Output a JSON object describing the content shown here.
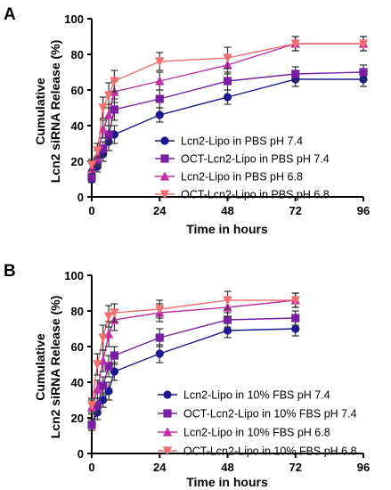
{
  "chart_data": [
    {
      "panel": "A",
      "type": "line",
      "ylabel": [
        "Cumulative",
        "Lcn2 siRNA Release (%)"
      ],
      "xlabel": "Time in hours",
      "xlim": [
        0,
        96
      ],
      "ylim": [
        0,
        100
      ],
      "xticks": [
        0,
        24,
        48,
        72,
        96
      ],
      "yticks": [
        0,
        20,
        40,
        60,
        80,
        100
      ],
      "grid": false,
      "legend_placement": "bottom-right",
      "x": [
        0,
        2,
        4,
        6,
        8,
        24,
        48,
        72,
        96
      ],
      "series": [
        {
          "name": "Lcn2-Lipo in PBS pH 7.4",
          "color": "#1a1a8c",
          "marker": "circle",
          "values": [
            10,
            17,
            24,
            31,
            35,
            46,
            56,
            66,
            66
          ],
          "errors": [
            2,
            3,
            4,
            5,
            5,
            4,
            4,
            4,
            4
          ]
        },
        {
          "name": "OCT-Lcn2-Lipo in PBS pH 7.4",
          "color": "#7b1fa2",
          "marker": "square",
          "values": [
            11,
            20,
            27,
            35,
            49,
            55,
            65,
            69,
            70
          ],
          "errors": [
            2,
            3,
            4,
            5,
            6,
            5,
            5,
            4,
            4
          ]
        },
        {
          "name": "Lcn2-Lipo in PBS pH 6.8",
          "color": "#c030a8",
          "marker": "triangle-up",
          "values": [
            16,
            22,
            38,
            46,
            59,
            65,
            74,
            86,
            86
          ],
          "errors": [
            3,
            4,
            5,
            6,
            6,
            5,
            5,
            4,
            4
          ]
        },
        {
          "name": "OCT-Lcn2-Lipo in PBS pH 6.8",
          "color": "#f07070",
          "marker": "triangle-down",
          "values": [
            18,
            26,
            50,
            57,
            65,
            76,
            78,
            86,
            86
          ],
          "errors": [
            3,
            4,
            6,
            7,
            6,
            5,
            6,
            4,
            4
          ]
        }
      ]
    },
    {
      "panel": "B",
      "type": "line",
      "ylabel": [
        "Cumulative",
        "Lcn2 siRNA Release (%)"
      ],
      "xlabel": "Time in hours",
      "xlim": [
        0,
        96
      ],
      "ylim": [
        0,
        100
      ],
      "xticks": [
        0,
        24,
        48,
        72,
        96
      ],
      "yticks": [
        0,
        20,
        40,
        60,
        80,
        100
      ],
      "grid": false,
      "legend_placement": "bottom-right",
      "x": [
        0,
        2,
        4,
        6,
        8,
        24,
        48,
        72
      ],
      "series": [
        {
          "name": "Lcn2-Lipo in 10% FBS pH 7.4",
          "color": "#1a1a8c",
          "marker": "circle",
          "values": [
            16,
            23,
            30,
            35,
            46,
            56,
            69,
            70
          ],
          "errors": [
            3,
            4,
            4,
            5,
            5,
            5,
            4,
            4
          ]
        },
        {
          "name": "OCT-Lcn2-Lipo in 10% FBS pH 7.4",
          "color": "#7b1fa2",
          "marker": "square",
          "values": [
            16,
            27,
            38,
            49,
            55,
            65,
            75,
            76
          ],
          "errors": [
            3,
            4,
            5,
            6,
            5,
            5,
            4,
            4
          ]
        },
        {
          "name": "Lcn2-Lipo in 10% FBS pH 6.8",
          "color": "#c030a8",
          "marker": "triangle-up",
          "values": [
            26,
            36,
            52,
            67,
            75,
            79,
            82,
            86
          ],
          "errors": [
            4,
            5,
            6,
            7,
            6,
            5,
            5,
            4
          ]
        },
        {
          "name": "OCT-Lcn2-Lipo in 10% FBS pH 6.8",
          "color": "#f07070",
          "marker": "triangle-down",
          "values": [
            27,
            50,
            65,
            77,
            79,
            81,
            86,
            86
          ],
          "errors": [
            4,
            6,
            7,
            6,
            5,
            5,
            5,
            4
          ]
        }
      ]
    }
  ]
}
